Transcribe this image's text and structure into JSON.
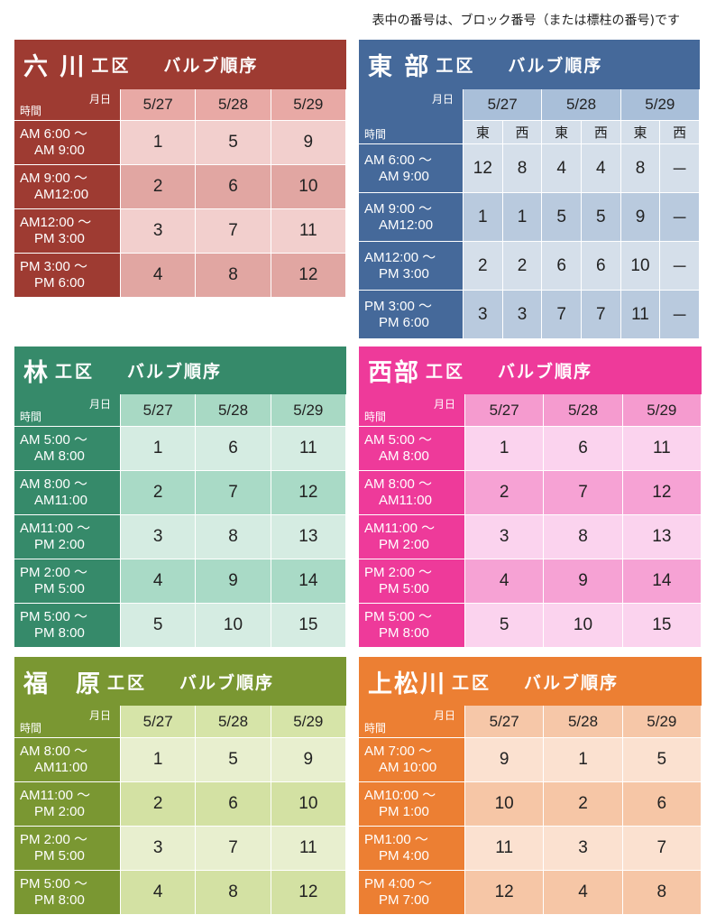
{
  "note": "表中の番号は、ブロック番号（または標柱の番号)です",
  "header_labels": {
    "date": "月日",
    "time": "時間"
  },
  "panels": [
    {
      "id": "rokukawa",
      "name": "六 川",
      "kuu": "工区",
      "subtitle": "バルブ順序",
      "dates": [
        "5/27",
        "5/28",
        "5/29"
      ],
      "rows": [
        {
          "t1": "AM 6:00 ～",
          "t2": "AM 9:00",
          "vals": [
            "1",
            "5",
            "9"
          ]
        },
        {
          "t1": "AM 9:00 ～",
          "t2": "AM12:00",
          "vals": [
            "2",
            "6",
            "10"
          ]
        },
        {
          "t1": "AM12:00 ～",
          "t2": "PM 3:00",
          "vals": [
            "3",
            "7",
            "11"
          ]
        },
        {
          "t1": "PM 3:00 ～",
          "t2": "PM 6:00",
          "vals": [
            "4",
            "8",
            "12"
          ]
        }
      ],
      "colors": {
        "title": "#9e3b32",
        "header": "#e8a9a5",
        "time": "#9e3b32",
        "row_light": "#f2cfcd",
        "row_dark": "#e1a6a2"
      }
    },
    {
      "id": "tobu",
      "name": "東 部",
      "kuu": "工区",
      "subtitle": "バルブ順序",
      "dates": [
        "5/27",
        "5/28",
        "5/29"
      ],
      "sub_headers": [
        "東",
        "西",
        "東",
        "西",
        "東",
        "西"
      ],
      "rows": [
        {
          "t1": "AM 6:00 ～",
          "t2": "AM 9:00",
          "vals": [
            "12",
            "8",
            "4",
            "4",
            "8",
            "－"
          ]
        },
        {
          "t1": "AM 9:00 ～",
          "t2": "AM12:00",
          "vals": [
            "1",
            "1",
            "5",
            "5",
            "9",
            "－"
          ]
        },
        {
          "t1": "AM12:00 ～",
          "t2": "PM 3:00",
          "vals": [
            "2",
            "2",
            "6",
            "6",
            "10",
            "－"
          ]
        },
        {
          "t1": "PM 3:00 ～",
          "t2": "PM 6:00",
          "vals": [
            "3",
            "3",
            "7",
            "7",
            "11",
            "－"
          ]
        }
      ],
      "colors": {
        "title": "#45699a",
        "header": "#a9bfd9",
        "time": "#45699a",
        "row_light": "#d5dfea",
        "row_dark": "#b9cade"
      }
    },
    {
      "id": "hayashi",
      "name": "林",
      "kuu": "工区",
      "subtitle": "バルブ順序",
      "dates": [
        "5/27",
        "5/28",
        "5/29"
      ],
      "rows": [
        {
          "t1": "AM 5:00 ～",
          "t2": "AM 8:00",
          "vals": [
            "1",
            "6",
            "11"
          ]
        },
        {
          "t1": "AM 8:00 ～",
          "t2": "AM11:00",
          "vals": [
            "2",
            "7",
            "12"
          ]
        },
        {
          "t1": "AM11:00 ～",
          "t2": "PM 2:00",
          "vals": [
            "3",
            "8",
            "13"
          ]
        },
        {
          "t1": "PM 2:00 ～",
          "t2": "PM 5:00",
          "vals": [
            "4",
            "9",
            "14"
          ]
        },
        {
          "t1": "PM 5:00 ～",
          "t2": "PM 8:00",
          "vals": [
            "5",
            "10",
            "15"
          ]
        }
      ],
      "colors": {
        "title": "#368a6a",
        "header": "#a8d9c4",
        "time": "#368a6a",
        "row_light": "#d5ece2",
        "row_dark": "#a9dac6"
      }
    },
    {
      "id": "seibu",
      "name": "西部",
      "kuu": "工区",
      "subtitle": "バルブ順序",
      "dates": [
        "5/27",
        "5/28",
        "5/29"
      ],
      "rows": [
        {
          "t1": "AM 5:00 ～",
          "t2": "AM 8:00",
          "vals": [
            "1",
            "6",
            "11"
          ]
        },
        {
          "t1": "AM 8:00 ～",
          "t2": "AM11:00",
          "vals": [
            "2",
            "7",
            "12"
          ]
        },
        {
          "t1": "AM11:00 ～",
          "t2": "PM 2:00",
          "vals": [
            "3",
            "8",
            "13"
          ]
        },
        {
          "t1": "PM 2:00 ～",
          "t2": "PM 5:00",
          "vals": [
            "4",
            "9",
            "14"
          ]
        },
        {
          "t1": "PM 5:00 ～",
          "t2": "PM 8:00",
          "vals": [
            "5",
            "10",
            "15"
          ]
        }
      ],
      "colors": {
        "title": "#ee3a9a",
        "header": "#f59bcf",
        "time": "#ee3a9a",
        "row_light": "#fbd3ee",
        "row_dark": "#f6a2d4"
      }
    },
    {
      "id": "fukuhara",
      "name": "福　原",
      "kuu": "工区",
      "subtitle": "バルブ順序",
      "dates": [
        "5/27",
        "5/28",
        "5/29"
      ],
      "rows": [
        {
          "t1": "AM 8:00 ～",
          "t2": "AM11:00",
          "vals": [
            "1",
            "5",
            "9"
          ]
        },
        {
          "t1": "AM11:00 ～",
          "t2": "PM 2:00",
          "vals": [
            "2",
            "6",
            "10"
          ]
        },
        {
          "t1": "PM 2:00 ～",
          "t2": "PM 5:00",
          "vals": [
            "3",
            "7",
            "11"
          ]
        },
        {
          "t1": "PM 5:00 ～",
          "t2": "PM 8:00",
          "vals": [
            "4",
            "8",
            "12"
          ]
        }
      ],
      "colors": {
        "title": "#7a9732",
        "header": "#d6e4a8",
        "time": "#7a9732",
        "row_light": "#e8efcf",
        "row_dark": "#d3e1a3"
      }
    },
    {
      "id": "kamimatsukawa",
      "name": "上松川",
      "kuu": "工区",
      "subtitle": "バルブ順序",
      "dates": [
        "5/27",
        "5/28",
        "5/29"
      ],
      "rows": [
        {
          "t1": "AM 7:00 ～",
          "t2": "AM 10:00",
          "vals": [
            "9",
            "1",
            "5"
          ]
        },
        {
          "t1": "AM10:00 ～",
          "t2": "PM 1:00",
          "vals": [
            "10",
            "2",
            "6"
          ]
        },
        {
          "t1": "PM1:00 ～",
          "t2": "PM 4:00",
          "vals": [
            "11",
            "3",
            "7"
          ]
        },
        {
          "t1": "PM 4:00 ～",
          "t2": "PM 7:00",
          "vals": [
            "12",
            "4",
            "8"
          ]
        }
      ],
      "colors": {
        "title": "#ec7f33",
        "header": "#f6c7a8",
        "time": "#ec7f33",
        "row_light": "#fbe1d0",
        "row_dark": "#f6c6a6"
      }
    }
  ]
}
